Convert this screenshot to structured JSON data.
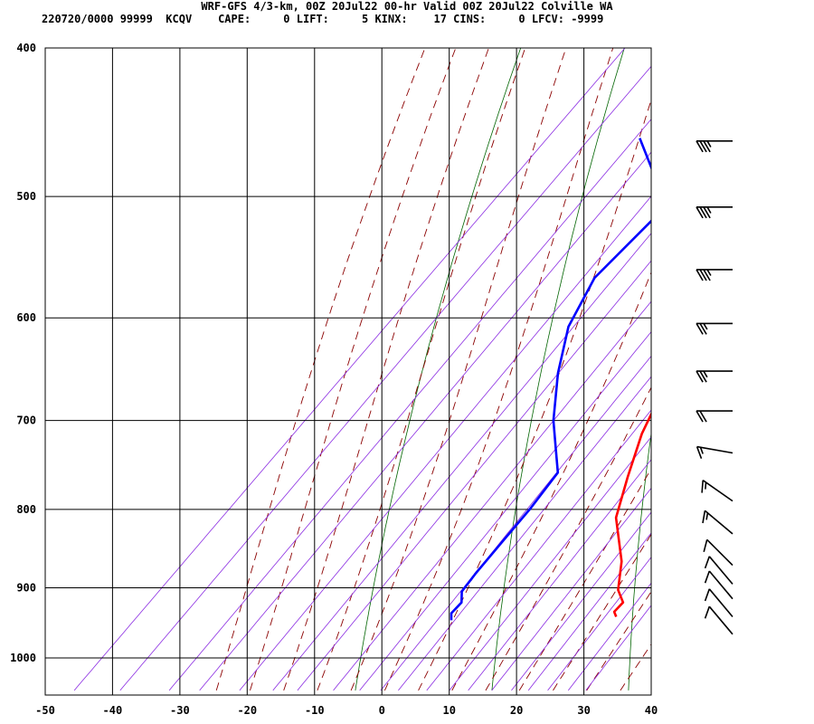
{
  "header": {
    "title": "WRF-GFS 4/3-km, 00Z 20Jul22 00-hr Valid 00Z 20Jul22 Colville WA",
    "meta": "220720/0000 99999  KCQV    CAPE:     0 LIFT:     5 KINX:    17 CINS:     0 LFCV: -9999"
  },
  "chart_data": {
    "type": "line",
    "title": "",
    "xlabel": "",
    "ylabel": "",
    "xlim": [
      -50,
      40
    ],
    "ylim": [
      1050,
      400
    ],
    "x_ticks": [
      -50,
      -40,
      -30,
      -20,
      -10,
      0,
      10,
      20,
      30,
      40
    ],
    "y_ticks": [
      400,
      500,
      600,
      700,
      800,
      900,
      1000
    ],
    "grid": true,
    "colors": {
      "temperature": "#ff0000",
      "dewpoint": "#0000ff",
      "dry_adiabat": "#006400",
      "moist_adiabat": "#8b0000",
      "mixing_ratio": "#8a2be2",
      "grid": "#000000"
    },
    "series": [
      {
        "key": "temperature",
        "points": [
          [
            29,
            940
          ],
          [
            28,
            933
          ],
          [
            28,
            920
          ],
          [
            25.5,
            903
          ],
          [
            22,
            865
          ],
          [
            15,
            810
          ],
          [
            11,
            762
          ],
          [
            7,
            714
          ],
          [
            3,
            655
          ],
          [
            0,
            602
          ],
          [
            -3,
            562
          ],
          [
            -6,
            530
          ],
          [
            -9,
            502
          ],
          [
            -15.5,
            458
          ]
        ]
      },
      {
        "key": "dewpoint",
        "points": [
          [
            5,
            945
          ],
          [
            4,
            935
          ],
          [
            4,
            920
          ],
          [
            2.5,
            905
          ],
          [
            2,
            880
          ],
          [
            1.5,
            840
          ],
          [
            1,
            800
          ],
          [
            0,
            757
          ],
          [
            -4,
            728
          ],
          [
            -8,
            700
          ],
          [
            -14,
            652
          ],
          [
            -19,
            608
          ],
          [
            -22,
            565
          ],
          [
            -21.5,
            507
          ],
          [
            -35,
            458
          ]
        ]
      }
    ],
    "wind_barbs": [
      {
        "p": 460,
        "dir": 270,
        "spd": 35
      },
      {
        "p": 508,
        "dir": 270,
        "spd": 35
      },
      {
        "p": 558,
        "dir": 270,
        "spd": 35
      },
      {
        "p": 605,
        "dir": 270,
        "spd": 25
      },
      {
        "p": 650,
        "dir": 270,
        "spd": 25
      },
      {
        "p": 690,
        "dir": 270,
        "spd": 20
      },
      {
        "p": 735,
        "dir": 280,
        "spd": 15
      },
      {
        "p": 790,
        "dir": 305,
        "spd": 15
      },
      {
        "p": 830,
        "dir": 310,
        "spd": 15
      },
      {
        "p": 870,
        "dir": 315,
        "spd": 10
      },
      {
        "p": 895,
        "dir": 320,
        "spd": 10
      },
      {
        "p": 915,
        "dir": 320,
        "spd": 10
      },
      {
        "p": 940,
        "dir": 320,
        "spd": 10
      },
      {
        "p": 965,
        "dir": 320,
        "spd": 10
      }
    ]
  }
}
